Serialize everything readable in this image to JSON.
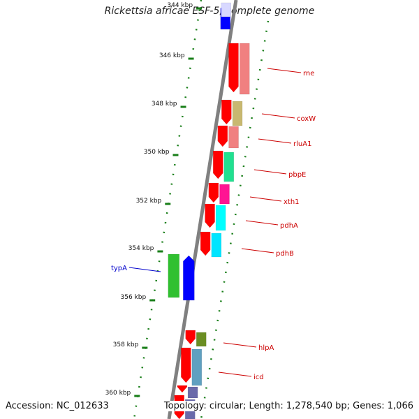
{
  "title": "Rickettsia africae ESF-5, complete genome",
  "accession": "Accession: NC_012633",
  "topology": "Topology: circular; Length: 1,278,540 bp; Genes: 1,066",
  "ticks": [
    "344 kbp",
    "346 kbp",
    "348 kbp",
    "350 kbp",
    "352 kbp",
    "354 kbp",
    "356 kbp",
    "358 kbp",
    "360 kbp"
  ],
  "gene_labels": [
    {
      "name": "rne",
      "color": "#cc0000"
    },
    {
      "name": "coxW",
      "color": "#cc0000"
    },
    {
      "name": "rluA1",
      "color": "#cc0000"
    },
    {
      "name": "pbpE",
      "color": "#cc0000"
    },
    {
      "name": "xth1",
      "color": "#cc0000"
    },
    {
      "name": "pdhA",
      "color": "#cc0000"
    },
    {
      "name": "pdhB",
      "color": "#cc0000"
    },
    {
      "name": "typA",
      "color": "#0000cc"
    },
    {
      "name": "hlpA",
      "color": "#cc0000"
    },
    {
      "name": "icd",
      "color": "#cc0000"
    }
  ],
  "colors": {
    "backbone": "#808080",
    "tick": "#1a7f1a",
    "forward_cds": "#ff0000",
    "reverse_cds": "#0000ff",
    "rne": "#f08080",
    "coxW": "#c8b870",
    "rluA1": "#f08080",
    "pbpE": "#20e090",
    "xth1": "#ff1493",
    "pdhA": "#00ffff",
    "pdhB": "#00e5ff",
    "typA": "#30c030",
    "hlpA": "#6b8e23",
    "icd": "#5fa0c0",
    "lower": "#6a6aaa"
  }
}
